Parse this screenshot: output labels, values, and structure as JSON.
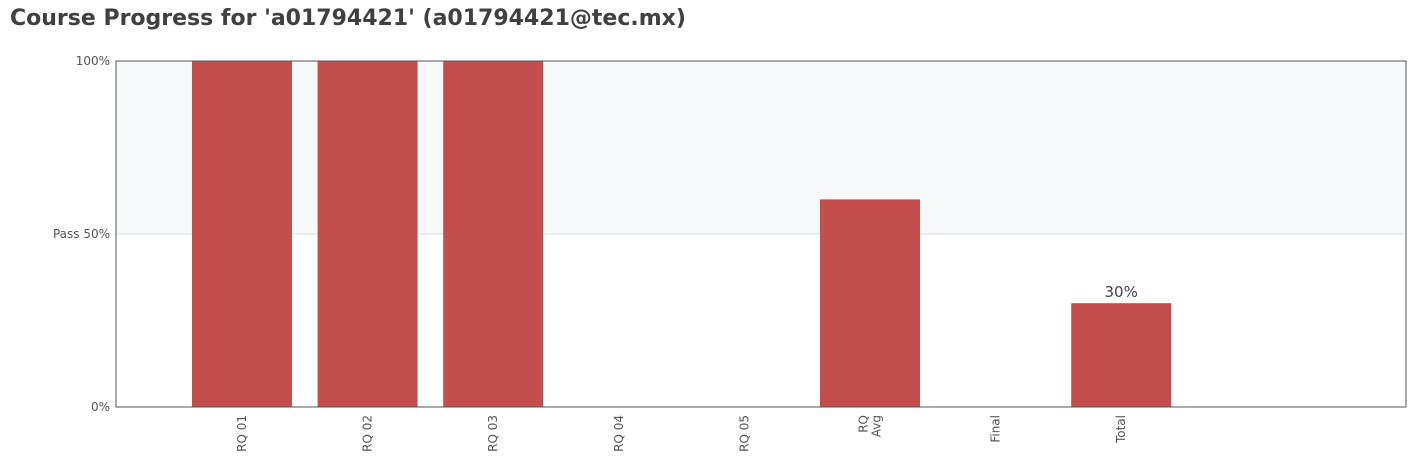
{
  "title": "Course Progress for 'a01794421' (a01794421@tec.mx)",
  "colors": {
    "bar": "#c44e4e",
    "upper_band": "#f7f8fa",
    "axis": "#555555",
    "grid": "#dddddd"
  },
  "chart_data": {
    "type": "bar",
    "title": "",
    "xlabel": "",
    "ylabel": "",
    "ylim": [
      0,
      100
    ],
    "categories": [
      [
        "RQ 01"
      ],
      [
        "RQ 02"
      ],
      [
        "RQ 03"
      ],
      [
        "RQ 04"
      ],
      [
        "RQ 05"
      ],
      [
        "RQ",
        "Avg"
      ],
      [
        "Final"
      ],
      [
        "Total"
      ]
    ],
    "values": [
      100,
      100,
      100,
      0,
      0,
      60,
      0,
      30
    ],
    "y_ticks": [
      {
        "value": 0,
        "label": "0%"
      },
      {
        "value": 50,
        "label": "Pass 50%"
      },
      {
        "value": 100,
        "label": "100%"
      }
    ],
    "data_labels": [
      {
        "index": 7,
        "label": "30%"
      }
    ],
    "shaded_region": [
      50,
      100
    ],
    "legend": "none",
    "grid": "pass line only"
  }
}
